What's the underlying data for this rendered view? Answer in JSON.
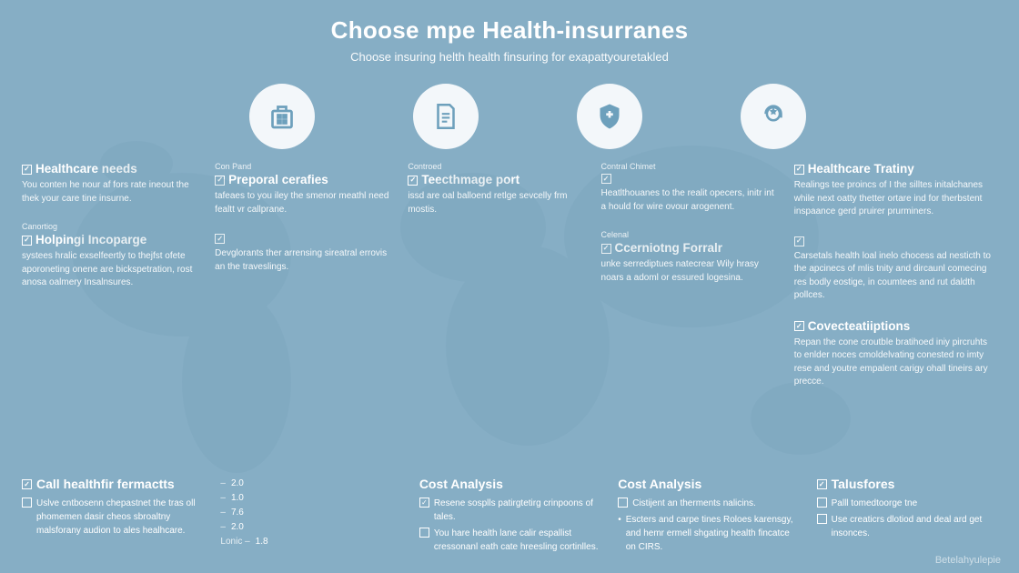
{
  "colors": {
    "bg": "#86aec5",
    "fg": "#ffffff",
    "icon_bg": "#f3f7fa",
    "icon_fg": "#6da0bc",
    "map": "#6a96b0"
  },
  "header": {
    "title": "Choose mpe Health-insurranes",
    "subtitle": "Choose insuring helth health finsuring for exapattyouretakled"
  },
  "icons": [
    "hospital-icon",
    "document-icon",
    "shield-icon",
    "support-icon"
  ],
  "columns": [
    {
      "blocks": [
        {
          "checked": true,
          "title": "Healthcare needs",
          "body": "You conten he nour af fors rate ineout the thek your care tine insurne."
        },
        {
          "eyebrow": "Canortiog",
          "checked": true,
          "title": "Holpingi Incoparge",
          "body": "systees hralic exselfeertly to thejfst ofete aporoneting onene are bickspetration, rost anosa oalmery Insalnsures."
        }
      ]
    },
    {
      "blocks": [
        {
          "eyebrow": "Con Pand",
          "checked": true,
          "title": "Preporal cerafies",
          "body": "tafeaes to you iley the smenor meathl need fealtt vr callprane."
        },
        {
          "checked": true,
          "title": "",
          "body": "Devglorants ther arrensing sireatral errovis an the traveslings."
        }
      ]
    },
    {
      "blocks": [
        {
          "eyebrow": "Controed",
          "checked": true,
          "title": "Teecthmage port",
          "body": "issd are oal balloend retlge sevcelly frm mostis."
        }
      ]
    },
    {
      "blocks": [
        {
          "eyebrow": "Contral Chimet",
          "checked": true,
          "title": "",
          "body": "Heatlthouanes to the realit opecers, initr int a hould for wire ovour arogenent."
        },
        {
          "eyebrow": "Celenal",
          "checked": true,
          "title": "Ccerniotng Forralr",
          "body": "unke serrediptues natecrear Wily hrasy noars a adoml or essured logesina."
        }
      ]
    },
    {
      "right": true,
      "blocks": [
        {
          "checked": true,
          "title": "Healthcare Tratiny",
          "body": "Realings tee proincs of I the silltes initalchanes while next oatty thetter ortare ind for therbstent inspaance gerd pruirer prurminers."
        },
        {
          "checked": true,
          "title": "",
          "body": "Carsetals health loal inelo chocess ad nesticth to the apcinecs of mlis tnity and dircaunl comecing res bodly eostige, in coumtees and rut daldth pollces."
        },
        {
          "checked": true,
          "title": "Covecteatiiptions",
          "body": "Repan the cone croutble bratihoed iniy pircruhts to enlder noces cmoldelvating conested ro imty rese and youtre empalent carigy ohall tineirs ary precce."
        }
      ]
    }
  ],
  "bottom": [
    {
      "title": "Call healthfir fermactts",
      "title_checked": true,
      "lines": [
        {
          "checked": false,
          "text": "Uslve cntbosenn chepastnet the tras oll phomemen dasir cheos sbroaltny malsforany audion to ales healhcare."
        }
      ]
    },
    {
      "stats": [
        {
          "dash": "–",
          "val": "2.0"
        },
        {
          "dash": "–",
          "val": "1.0"
        },
        {
          "dash": "–",
          "val": "7.6"
        },
        {
          "dash": "–",
          "val": "2.0"
        },
        {
          "dash": "Lonic –",
          "val": "1.8"
        }
      ]
    },
    {
      "title": "Cost Analysis",
      "lines": [
        {
          "checked": true,
          "text": "Resene sosplls patirgtetirg crinpoons of tales."
        },
        {
          "checked": false,
          "text": "You hare health lane calir espallist cressonanl eath cate hreesling cortinlles."
        }
      ]
    },
    {
      "title": "Cost Analysis",
      "lines": [
        {
          "checked": false,
          "text": "Cistijent an therments nalicins."
        },
        {
          "bullet": true,
          "text": "Escters and carpe tines Roloes karensgy, and hemr ermell shgating health fincatce on CIRS."
        }
      ]
    },
    {
      "title": "Talusfores",
      "title_checked": true,
      "lines": [
        {
          "checked": false,
          "text": "Palll tomedtoorge tne"
        },
        {
          "checked": false,
          "text": "Use creaticrs dlotiod and deal ard get insonces."
        }
      ]
    }
  ],
  "watermark": "Betelahyulepie"
}
